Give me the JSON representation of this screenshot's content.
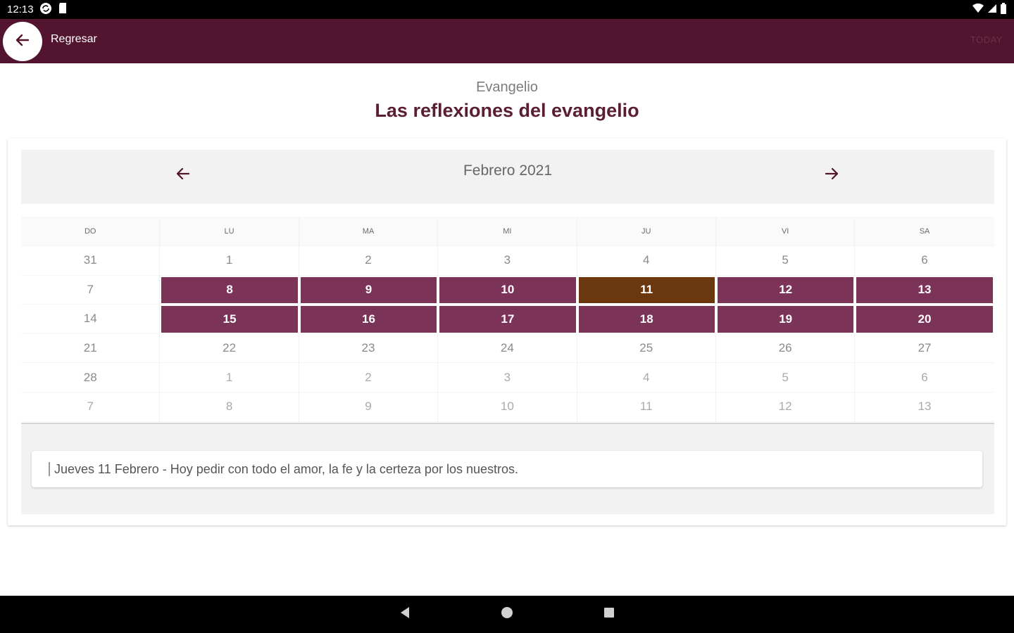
{
  "status_bar": {
    "time": "12:13"
  },
  "app_bar": {
    "back_label": "Regresar",
    "today_label": "TODAY"
  },
  "page": {
    "subtitle": "Evangelio",
    "title": "Las reflexiones del evangelio"
  },
  "calendar": {
    "month_label": "Febrero 2021",
    "weekdays": [
      "DO",
      "LU",
      "MA",
      "MI",
      "JU",
      "VI",
      "SA"
    ],
    "weeks": [
      [
        "31",
        "1",
        "2",
        "3",
        "4",
        "5",
        "6"
      ],
      [
        "7",
        "8",
        "9",
        "10",
        "11",
        "12",
        "13"
      ],
      [
        "14",
        "15",
        "16",
        "17",
        "18",
        "19",
        "20"
      ],
      [
        "21",
        "22",
        "23",
        "24",
        "25",
        "26",
        "27"
      ],
      [
        "28",
        "1",
        "2",
        "3",
        "4",
        "5",
        "6"
      ],
      [
        "7",
        "8",
        "9",
        "10",
        "11",
        "12",
        "13"
      ]
    ],
    "marked_days": [
      "8",
      "9",
      "10",
      "12",
      "13",
      "15",
      "16",
      "17",
      "18",
      "19",
      "20"
    ],
    "today_day": "11"
  },
  "events": [
    {
      "text": "Jueves 11 Febrero - Hoy pedir con todo el amor, la  fe y la certeza por los nuestros."
    }
  ],
  "colors": {
    "app_bar": "#52142e",
    "marked_day": "#7c3358",
    "today": "#6a370f",
    "title": "#5a1d34"
  }
}
